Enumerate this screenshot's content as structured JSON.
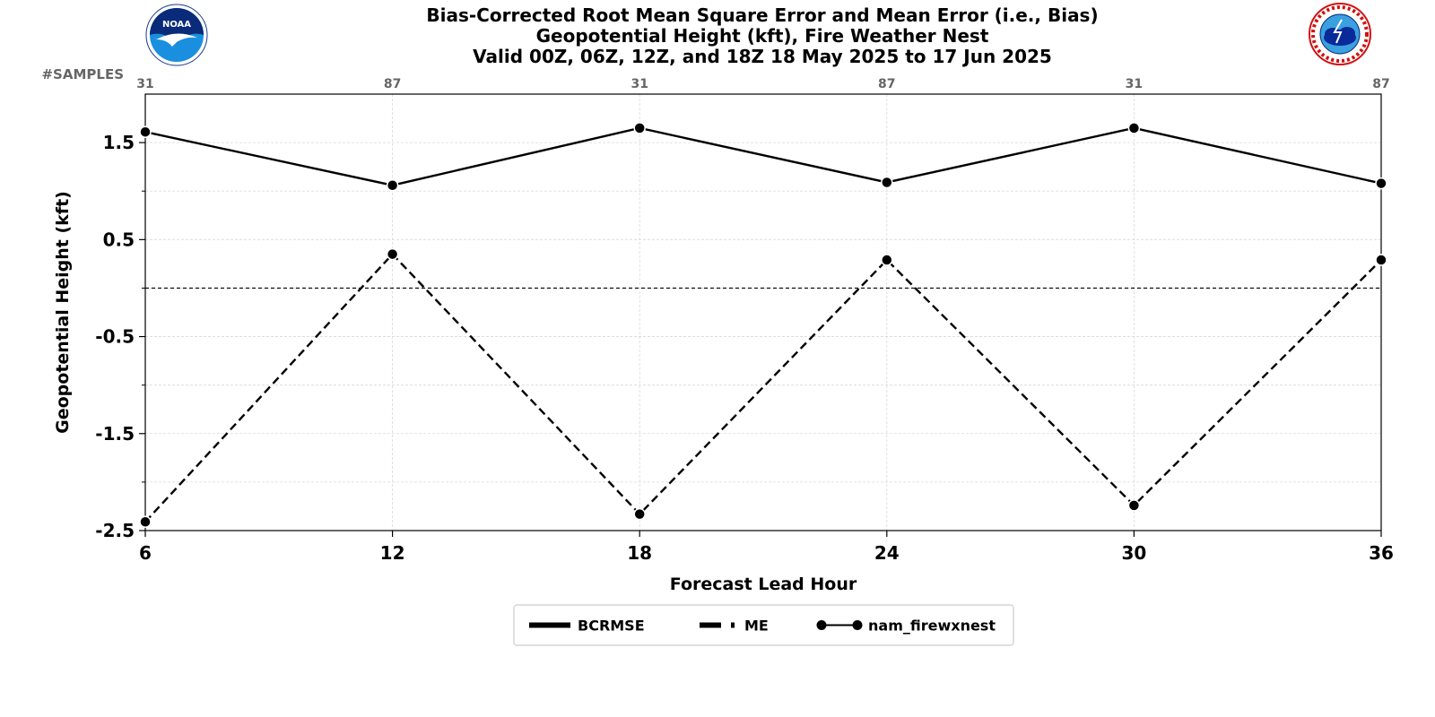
{
  "title_lines": [
    "Bias-Corrected Root Mean Square Error and Mean Error (i.e., Bias)",
    "Geopotential Height (kft), Fire Weather Nest",
    "Valid 00Z, 06Z, 12Z, and 18Z 18 May 2025 to 17 Jun 2025"
  ],
  "logos": {
    "left": {
      "icon": "noaa-logo",
      "text": "NOAA"
    },
    "right": {
      "icon": "nws-logo",
      "text": "NATIONAL WEATHER SERVICE"
    }
  },
  "samples_label": "#SAMPLES",
  "colors": {
    "series": "#000000",
    "grid": "#d9d9d9",
    "samples_text": "#666666",
    "zero_line": "#000000"
  },
  "chart_data": {
    "type": "line",
    "title": "Bias-Corrected Root Mean Square Error and Mean Error (i.e., Bias)",
    "xlabel": "Forecast Lead Hour",
    "ylabel": "Geopotential Height (kft)",
    "x": [
      6,
      12,
      18,
      24,
      30,
      36
    ],
    "x_ticks": [
      "6",
      "12",
      "18",
      "24",
      "30",
      "36"
    ],
    "xlim": [
      6,
      36
    ],
    "ylim": [
      -2.5,
      2.0
    ],
    "y_ticks": [
      -2.5,
      -1.5,
      -0.5,
      0.5,
      1.5
    ],
    "y_tick_labels": [
      "-2.5",
      "-1.5",
      "-0.5",
      "0.5",
      "1.5"
    ],
    "y_minor_ticks": [
      -2.0,
      -1.0,
      0.0,
      1.0
    ],
    "samples": [
      "31",
      "87",
      "31",
      "87",
      "31",
      "87"
    ],
    "zero_line": 0,
    "grid": true,
    "series": [
      {
        "metric": "BCRMSE",
        "style": "solid",
        "values": [
          1.61,
          1.06,
          1.65,
          1.09,
          1.65,
          1.08
        ]
      },
      {
        "metric": "ME",
        "style": "dashed",
        "values": [
          -2.41,
          0.35,
          -2.33,
          0.29,
          -2.24,
          0.29
        ]
      }
    ],
    "legend": {
      "placement": "bottom-center",
      "entries": [
        {
          "label": "BCRMSE",
          "style": "solid"
        },
        {
          "label": "ME",
          "style": "dashed"
        },
        {
          "label": "nam_firewxnest",
          "style": "marker-line"
        }
      ]
    }
  }
}
